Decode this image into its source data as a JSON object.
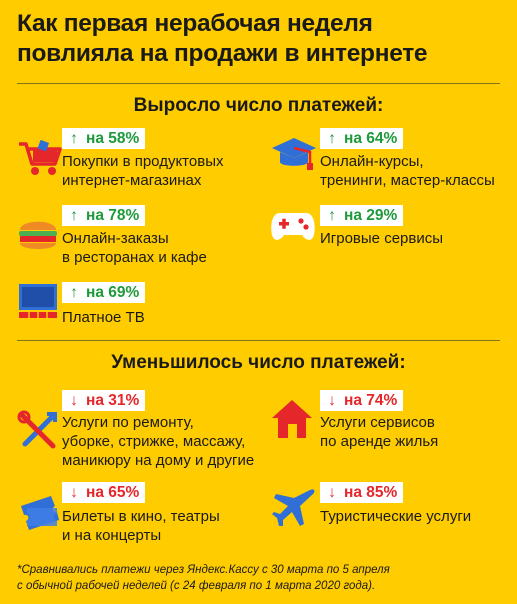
{
  "title": "Как первая нерабочая неделя\nповлияла на продажи в интернете",
  "increased": {
    "heading": "Выросло число платежей:",
    "items": [
      {
        "icon": "shopping-cart-icon",
        "arrow": "↑",
        "change": "на 58%",
        "label": "Покупки в продуктовых\nинтернет-магазинах"
      },
      {
        "icon": "graduation-cap-icon",
        "arrow": "↑",
        "change": "на 64%",
        "label": "Онлайн-курсы,\nтренинги, мастер-классы"
      },
      {
        "icon": "burger-icon",
        "arrow": "↑",
        "change": "на 78%",
        "label": "Онлайн-заказы\nв ресторанах и кафе"
      },
      {
        "icon": "gamepad-icon",
        "arrow": "↑",
        "change": "на 29%",
        "label": "Игровые сервисы"
      },
      {
        "icon": "tv-icon",
        "arrow": "↑",
        "change": "на 69%",
        "label": "Платное ТВ"
      }
    ]
  },
  "decreased": {
    "heading": "Уменьшилось число платежей:",
    "items": [
      {
        "icon": "tools-icon",
        "arrow": "↓",
        "change": "на 31%",
        "label": "Услуги по ремонту,\nуборке, стрижке, массажу,\nманикюру на дому и другие"
      },
      {
        "icon": "house-icon",
        "arrow": "↓",
        "change": "на 74%",
        "label": "Услуги сервисов\nпо аренде жилья"
      },
      {
        "icon": "ticket-icon",
        "arrow": "↓",
        "change": "на 65%",
        "label": "Билеты в кино, театры\nи на концерты"
      },
      {
        "icon": "airplane-icon",
        "arrow": "↓",
        "change": "на 85%",
        "label": "Туристические услуги"
      }
    ]
  },
  "footnote": "*Сравнивались платежи через Яндекс.Кассу с 30 марта по 5 апреля\nс обычной рабочей неделей (с 24 февраля по 1 марта 2020 года).",
  "colors": {
    "background": "#ffcc00",
    "increase": "#1f9a3a",
    "decrease": "#e5262a",
    "icon_red": "#e5262a",
    "icon_blue": "#2f6fd6"
  }
}
